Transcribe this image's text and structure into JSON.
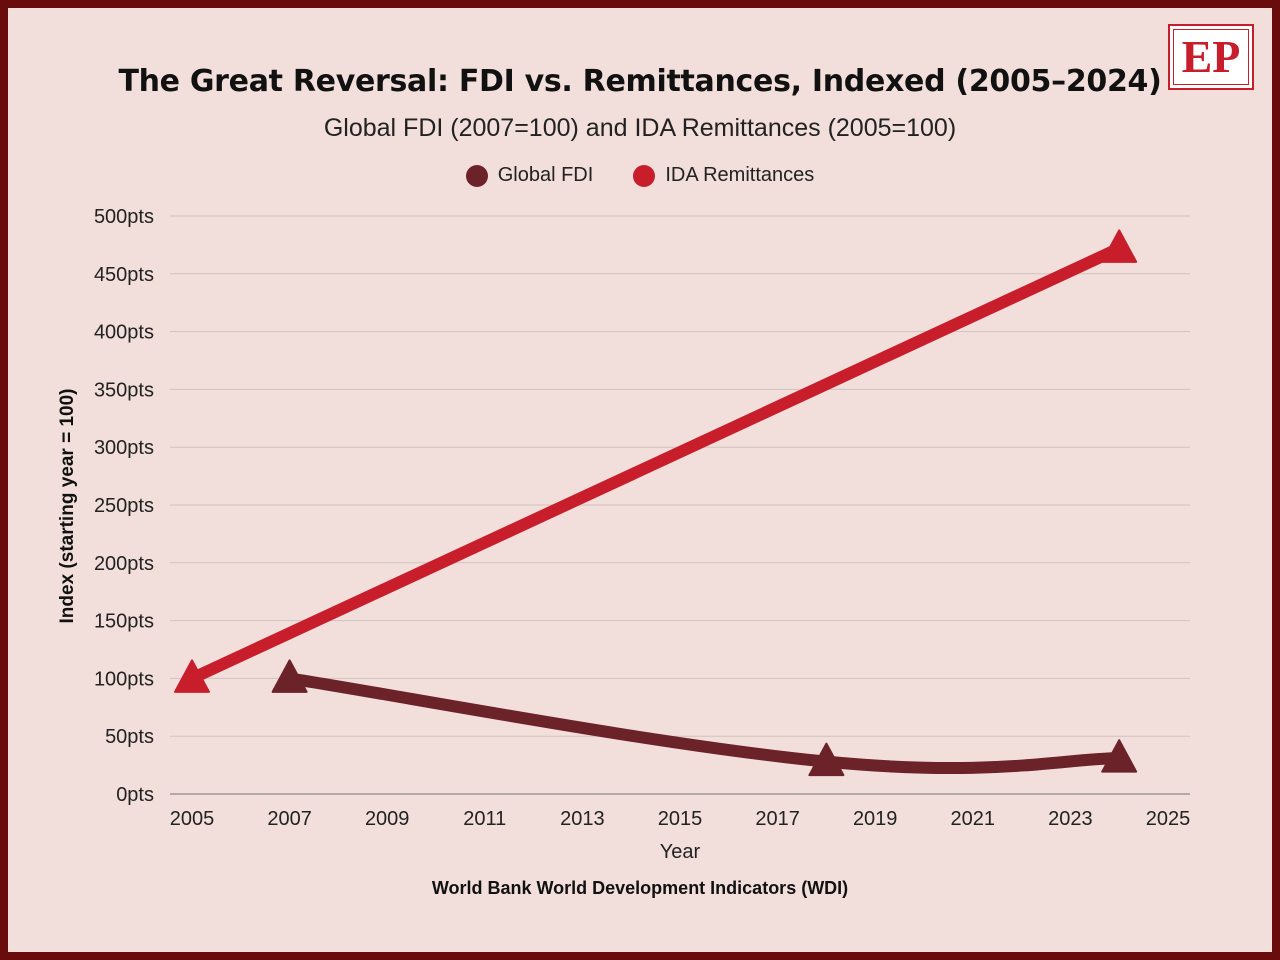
{
  "colors": {
    "frame": "#6b0c0c",
    "background": "#f2dfdb",
    "fdi": "#6b2228",
    "remittances": "#c81e2b",
    "logo": "#c81e2b"
  },
  "logo": {
    "text": "EP"
  },
  "chart_data": {
    "type": "line",
    "title": "The Great Reversal: FDI vs. Remittances, Indexed (2005–2024)",
    "subtitle": "Global FDI (2007=100) and IDA Remittances (2005=100)",
    "xlabel": "Year",
    "ylabel": "Index (starting year = 100)",
    "source": "World Bank World Development Indicators (WDI)",
    "xlim": [
      2005,
      2025
    ],
    "ylim": [
      0,
      500
    ],
    "x_ticks": [
      "2005",
      "2007",
      "2009",
      "2011",
      "2013",
      "2015",
      "2017",
      "2019",
      "2021",
      "2023",
      "2025"
    ],
    "y_ticks": [
      "0pts",
      "50pts",
      "100pts",
      "150pts",
      "200pts",
      "250pts",
      "300pts",
      "350pts",
      "400pts",
      "450pts",
      "500pts"
    ],
    "grid": true,
    "legend_position": "top-center",
    "series": [
      {
        "name": "Global FDI",
        "color": "#6b2228",
        "points": [
          {
            "x": 2007,
            "y": 100
          },
          {
            "x": 2018,
            "y": 28
          },
          {
            "x": 2024,
            "y": 31
          }
        ]
      },
      {
        "name": "IDA Remittances",
        "color": "#c81e2b",
        "points": [
          {
            "x": 2005,
            "y": 100
          },
          {
            "x": 2024,
            "y": 472
          }
        ]
      }
    ]
  }
}
